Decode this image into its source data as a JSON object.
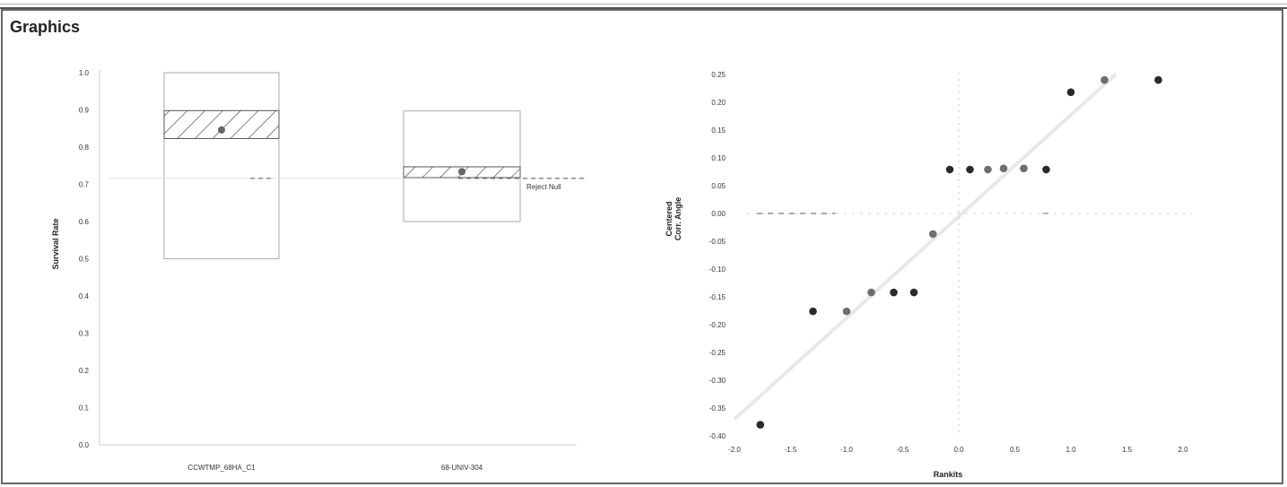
{
  "panel": {
    "title": "Graphics"
  },
  "chart_data": [
    {
      "type": "box",
      "title": "",
      "xlabel": "",
      "ylabel": "Survival Rate",
      "ylim": [
        0.0,
        1.0
      ],
      "yticks": [
        "0.0",
        "0.1",
        "0.2",
        "0.3",
        "0.4",
        "0.5",
        "0.6",
        "0.7",
        "0.8",
        "0.9",
        "1.0"
      ],
      "grid": false,
      "categories": [
        "CCWTMP_68HA_C1",
        "68-UNIV-304"
      ],
      "boxes": [
        {
          "category": "CCWTMP_68HA_C1",
          "outer_low": 0.5,
          "outer_high": 1.0,
          "hatch_low": 0.823,
          "hatch_high": 0.898,
          "point": 0.846
        },
        {
          "category": "68-UNIV-304",
          "outer_low": 0.6,
          "outer_high": 0.897,
          "hatch_low": 0.718,
          "hatch_high": 0.747,
          "point": 0.734
        }
      ],
      "reference_line": {
        "value": 0.716,
        "label": "Reject Null"
      }
    },
    {
      "type": "scatter",
      "title": "",
      "xlabel": "Rankits",
      "ylabel_line1": "Centered",
      "ylabel_line2": "Corr. Angle",
      "xlim": [
        -2.0,
        2.0
      ],
      "ylim": [
        -0.4,
        0.25
      ],
      "xticks": [
        "-2.0",
        "-1.5",
        "-1.0",
        "-0.5",
        "0.0",
        "0.5",
        "1.0",
        "1.5",
        "2.0"
      ],
      "yticks": [
        "0.25",
        "0.20",
        "0.15",
        "0.10",
        "0.05",
        "0.00",
        "-0.05",
        "-0.10",
        "-0.15",
        "-0.20",
        "-0.25",
        "-0.30",
        "-0.35",
        "-0.40"
      ],
      "grid": false,
      "fit_line": {
        "x": [
          -2.0,
          1.4
        ],
        "y": [
          -0.37,
          0.25
        ]
      },
      "points": [
        {
          "x": -1.77,
          "y": -0.38,
          "shade": "dark"
        },
        {
          "x": -1.3,
          "y": -0.176,
          "shade": "dark"
        },
        {
          "x": -1.0,
          "y": -0.176,
          "shade": "gray"
        },
        {
          "x": -0.78,
          "y": -0.142,
          "shade": "gray"
        },
        {
          "x": -0.58,
          "y": -0.142,
          "shade": "dark"
        },
        {
          "x": -0.4,
          "y": -0.142,
          "shade": "dark"
        },
        {
          "x": -0.23,
          "y": -0.037,
          "shade": "gray"
        },
        {
          "x": -0.08,
          "y": 0.079,
          "shade": "dark"
        },
        {
          "x": 0.1,
          "y": 0.079,
          "shade": "dark"
        },
        {
          "x": 0.26,
          "y": 0.079,
          "shade": "gray"
        },
        {
          "x": 0.4,
          "y": 0.081,
          "shade": "gray"
        },
        {
          "x": 0.58,
          "y": 0.081,
          "shade": "gray"
        },
        {
          "x": 0.78,
          "y": 0.079,
          "shade": "dark"
        },
        {
          "x": 1.0,
          "y": 0.218,
          "shade": "dark"
        },
        {
          "x": 1.3,
          "y": 0.24,
          "shade": "gray"
        },
        {
          "x": 1.78,
          "y": 0.24,
          "shade": "dark"
        }
      ]
    }
  ],
  "colors": {
    "dark_point": "#2a2a2a",
    "gray_point": "#6e6e6e",
    "box_border": "#aaaaaa",
    "hatch_border": "#555555",
    "axis": "#cccccc",
    "fit_line": "#e8e8e8"
  }
}
